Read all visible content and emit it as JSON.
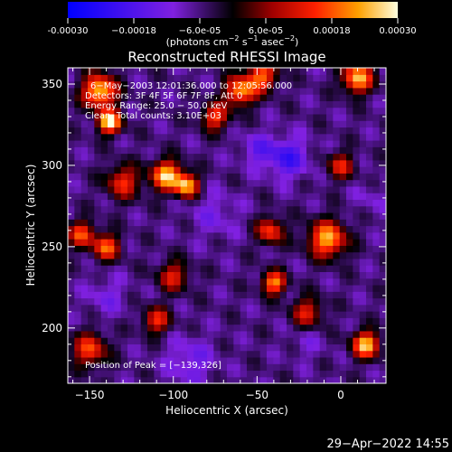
{
  "chart_data": {
    "type": "heatmap",
    "title": "Reconstructed RHESSI Image",
    "xlabel": "Heliocentric X (arcsec)",
    "ylabel": "Heliocentric Y (arcsec)",
    "xlim": [
      -163,
      27
    ],
    "ylim": [
      166,
      360
    ],
    "x_ticks": [
      -150,
      -100,
      -50,
      0
    ],
    "x_tick_labels": [
      "−150",
      "−100",
      "−50",
      "0"
    ],
    "y_ticks": [
      200,
      250,
      300,
      350
    ],
    "y_tick_labels": [
      "200",
      "250",
      "300",
      "350"
    ],
    "colorbar": {
      "range": [
        -0.0003,
        0.0003
      ],
      "tick_values": [
        -0.0003,
        -0.00018,
        -6e-05,
        6e-05,
        0.00018,
        0.0003
      ],
      "tick_labels": [
        "-0.00030",
        "−0.00018",
        "−6.0e-05",
        "6.0e-05",
        "0.00018",
        "0.00030"
      ],
      "units_label": "(photons cm",
      "units_exp1": "−2",
      "units_mid": " s",
      "units_exp2": "−1",
      "units_mid2": " asec",
      "units_exp3": "−2",
      "units_end": ")"
    },
    "annotations": [
      "6−May−2003 12:01:36.000 to 12:05:56.000",
      "Detectors: 3F 4F 5F 6F 7F 8F, Att 0",
      "Energy Range: 25.0 − 50.0 keV",
      "Clean.  Total counts: 3.10E+03"
    ],
    "peak_label": "Position of Peak = [−139,326]",
    "peak_position": [
      -139,
      326
    ],
    "bright_sources": [
      {
        "x": -144,
        "y": 346,
        "value": 0.00027,
        "radius": 10
      },
      {
        "x": -138,
        "y": 327,
        "value": 0.0003,
        "radius": 7
      },
      {
        "x": -104,
        "y": 294,
        "value": 0.00026,
        "radius": 9
      },
      {
        "x": -92,
        "y": 288,
        "value": 0.00024,
        "radius": 7
      },
      {
        "x": -60,
        "y": 346,
        "value": 0.00022,
        "radius": 9
      },
      {
        "x": -47,
        "y": 355,
        "value": 0.00018,
        "radius": 9
      },
      {
        "x": 10,
        "y": 354,
        "value": 0.00025,
        "radius": 9
      },
      {
        "x": -75,
        "y": 330,
        "value": 0.00016,
        "radius": 8
      },
      {
        "x": -8,
        "y": 255,
        "value": 0.00024,
        "radius": 11
      },
      {
        "x": -42,
        "y": 260,
        "value": 0.00016,
        "radius": 8
      },
      {
        "x": -155,
        "y": 258,
        "value": 0.00016,
        "radius": 8
      },
      {
        "x": -140,
        "y": 250,
        "value": 0.00018,
        "radius": 8
      },
      {
        "x": -40,
        "y": 228,
        "value": 0.00022,
        "radius": 7
      },
      {
        "x": -100,
        "y": 232,
        "value": 0.00012,
        "radius": 9
      },
      {
        "x": 15,
        "y": 190,
        "value": 0.00026,
        "radius": 8
      },
      {
        "x": -150,
        "y": 187,
        "value": 0.00016,
        "radius": 10
      },
      {
        "x": -110,
        "y": 205,
        "value": 0.00014,
        "radius": 8
      },
      {
        "x": -20,
        "y": 210,
        "value": 0.00012,
        "radius": 9
      },
      {
        "x": -130,
        "y": 290,
        "value": 0.00014,
        "radius": 10
      },
      {
        "x": 0,
        "y": 300,
        "value": 0.00012,
        "radius": 8
      }
    ],
    "negative_regions": [
      {
        "x": -32,
        "y": 305,
        "value": -0.0002,
        "radius": 12
      },
      {
        "x": -50,
        "y": 310,
        "value": -0.00014,
        "radius": 10
      },
      {
        "x": -75,
        "y": 270,
        "value": -0.00012,
        "radius": 14
      },
      {
        "x": -90,
        "y": 180,
        "value": -0.00014,
        "radius": 14
      },
      {
        "x": -140,
        "y": 220,
        "value": -0.00012,
        "radius": 12
      },
      {
        "x": -20,
        "y": 190,
        "value": -0.0001,
        "radius": 10
      },
      {
        "x": 18,
        "y": 280,
        "value": -0.0001,
        "radius": 10
      }
    ],
    "background_value": -6e-05,
    "colormap_stops": [
      {
        "v": 0.0,
        "color": "#0000ff"
      },
      {
        "v": 0.32,
        "color": "#8020e0"
      },
      {
        "v": 0.5,
        "color": "#000000"
      },
      {
        "v": 0.62,
        "color": "#a00000"
      },
      {
        "v": 0.75,
        "color": "#ff2000"
      },
      {
        "v": 0.88,
        "color": "#ffa000"
      },
      {
        "v": 1.0,
        "color": "#ffffe0"
      }
    ]
  },
  "footer": {
    "timestamp": "29−Apr−2022 14:55"
  }
}
